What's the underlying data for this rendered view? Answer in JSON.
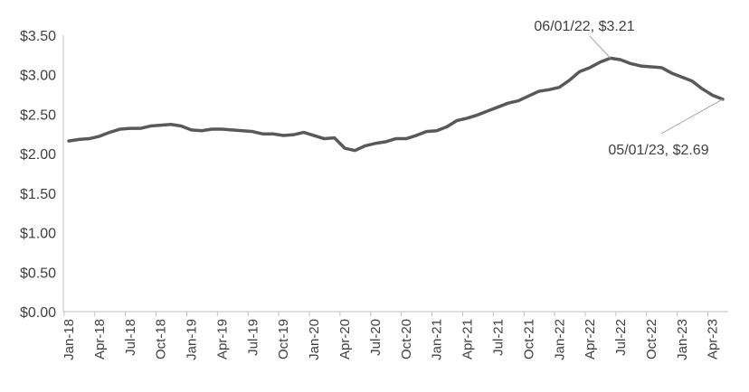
{
  "chart_data": {
    "type": "line",
    "title": "",
    "xlabel": "",
    "ylabel": "",
    "ylim": [
      0,
      3.5
    ],
    "y_ticks": [
      "$0.00",
      "$0.50",
      "$1.00",
      "$1.50",
      "$2.00",
      "$2.50",
      "$3.00",
      "$3.50"
    ],
    "y_tick_values": [
      0,
      0.5,
      1.0,
      1.5,
      2.0,
      2.5,
      3.0,
      3.5
    ],
    "x_tick_labels": [
      "Jan-18",
      "Apr-18",
      "Jul-18",
      "Oct-18",
      "Jan-19",
      "Apr-19",
      "Jul-19",
      "Oct-19",
      "Jan-20",
      "Apr-20",
      "Jul-20",
      "Oct-20",
      "Jan-21",
      "Apr-21",
      "Jul-21",
      "Oct-21",
      "Jan-22",
      "Apr-22",
      "Jul-22",
      "Oct-22",
      "Jan-23",
      "Apr-23"
    ],
    "grid": false,
    "legend": "none",
    "line_color": "#595959",
    "series": [
      {
        "x": [
          "01/01/18",
          "02/01/18",
          "03/01/18",
          "04/01/18",
          "05/01/18",
          "06/01/18",
          "07/01/18",
          "08/01/18",
          "09/01/18",
          "10/01/18",
          "11/01/18",
          "12/01/18",
          "01/01/19",
          "02/01/19",
          "03/01/19",
          "04/01/19",
          "05/01/19",
          "06/01/19",
          "07/01/19",
          "08/01/19",
          "09/01/19",
          "10/01/19",
          "11/01/19",
          "12/01/19",
          "01/01/20",
          "02/01/20",
          "03/01/20",
          "04/01/20",
          "05/01/20",
          "06/01/20",
          "07/01/20",
          "08/01/20",
          "09/01/20",
          "10/01/20",
          "11/01/20",
          "12/01/20",
          "01/01/21",
          "02/01/21",
          "03/01/21",
          "04/01/21",
          "05/01/21",
          "06/01/21",
          "07/01/21",
          "08/01/21",
          "09/01/21",
          "10/01/21",
          "11/01/21",
          "12/01/21",
          "01/01/22",
          "02/01/22",
          "03/01/22",
          "04/01/22",
          "05/01/22",
          "06/01/22",
          "07/01/22",
          "08/01/22",
          "09/01/22",
          "10/01/22",
          "11/01/22",
          "12/01/22",
          "01/01/23",
          "02/01/23",
          "03/01/23",
          "04/01/23",
          "05/01/23"
        ],
        "values": [
          2.16,
          2.18,
          2.19,
          2.22,
          2.27,
          2.31,
          2.32,
          2.32,
          2.35,
          2.36,
          2.37,
          2.35,
          2.3,
          2.29,
          2.31,
          2.31,
          2.3,
          2.29,
          2.28,
          2.25,
          2.25,
          2.23,
          2.24,
          2.27,
          2.23,
          2.19,
          2.2,
          2.07,
          2.04,
          2.1,
          2.13,
          2.15,
          2.19,
          2.19,
          2.23,
          2.28,
          2.29,
          2.34,
          2.42,
          2.45,
          2.49,
          2.54,
          2.59,
          2.64,
          2.67,
          2.73,
          2.79,
          2.81,
          2.84,
          2.93,
          3.04,
          3.09,
          3.16,
          3.21,
          3.19,
          3.14,
          3.11,
          3.1,
          3.09,
          3.02,
          2.97,
          2.92,
          2.82,
          2.74,
          2.69
        ]
      }
    ],
    "annotations": [
      {
        "text": "06/01/22, $3.21",
        "index": 53
      },
      {
        "text": "05/01/23, $2.69",
        "index": 64
      }
    ]
  }
}
